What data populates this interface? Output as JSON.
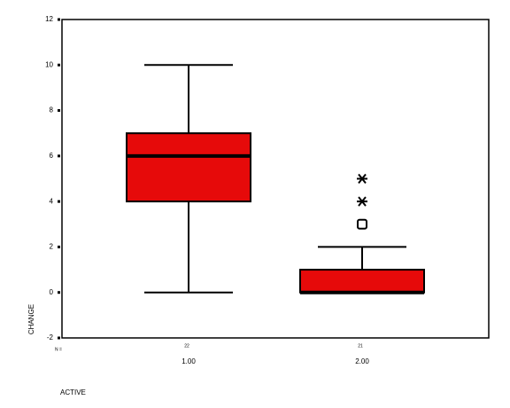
{
  "chart_data": {
    "type": "box",
    "categories": [
      "1.00",
      "2.00"
    ],
    "boxes": [
      {
        "whisker_low": 0,
        "q1": 4,
        "median": 6,
        "q3": 7,
        "whisker_high": 10,
        "outliers": [],
        "extremes": []
      },
      {
        "whisker_low": 0,
        "q1": 0,
        "median": 0,
        "q3": 1,
        "whisker_high": 2,
        "outliers": [
          3
        ],
        "extremes": [
          4,
          5
        ]
      }
    ],
    "color": "#e60a0a",
    "ylim": [
      -2,
      12
    ],
    "yticks": [
      -2,
      0,
      2,
      4,
      6,
      8,
      10,
      12
    ],
    "xlabel": "ACTIVE",
    "ylabel": "CHANGE",
    "n_label": "N =",
    "n": [
      22,
      21
    ]
  }
}
